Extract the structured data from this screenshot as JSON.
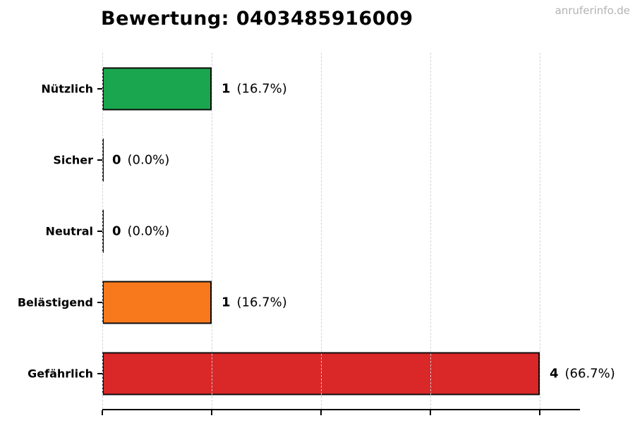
{
  "title": "Bewertung: 0403485916009",
  "watermark": "anruferinfo.de",
  "colors": {
    "background": "#ffffff",
    "title": "#000000",
    "watermark": "#b3b3b3",
    "axis": "#000000",
    "grid": "#d2d2d2",
    "bar_border": "#0d0d0d",
    "green": "#1aa64e",
    "orange": "#f8791b",
    "red": "#da2727"
  },
  "chart_data": {
    "type": "bar",
    "orientation": "horizontal",
    "title": "Bewertung: 0403485916009",
    "xlabel": "",
    "ylabel": "",
    "categories": [
      "Nützlich",
      "Sicher",
      "Neutral",
      "Belästigend",
      "Gefährlich"
    ],
    "values": [
      1,
      0,
      0,
      1,
      4
    ],
    "percentages": [
      16.7,
      0.0,
      0.0,
      16.7,
      66.7
    ],
    "value_labels": [
      {
        "count": "1",
        "pct": "(16.7%)"
      },
      {
        "count": "0",
        "pct": "(0.0%)"
      },
      {
        "count": "0",
        "pct": "(0.0%)"
      },
      {
        "count": "1",
        "pct": "(16.7%)"
      },
      {
        "count": "4",
        "pct": "(66.7%)"
      }
    ],
    "bar_colors": [
      "#1aa64e",
      "#0d0d0d",
      "#0d0d0d",
      "#f8791b",
      "#da2727"
    ],
    "xlim": [
      0,
      4.37
    ],
    "xticks": [
      0,
      1,
      2,
      3,
      4
    ],
    "xtick_labels_shown": false,
    "grid": {
      "axis": "x",
      "style": "dashed",
      "above_bars": true
    },
    "legend": "none"
  }
}
